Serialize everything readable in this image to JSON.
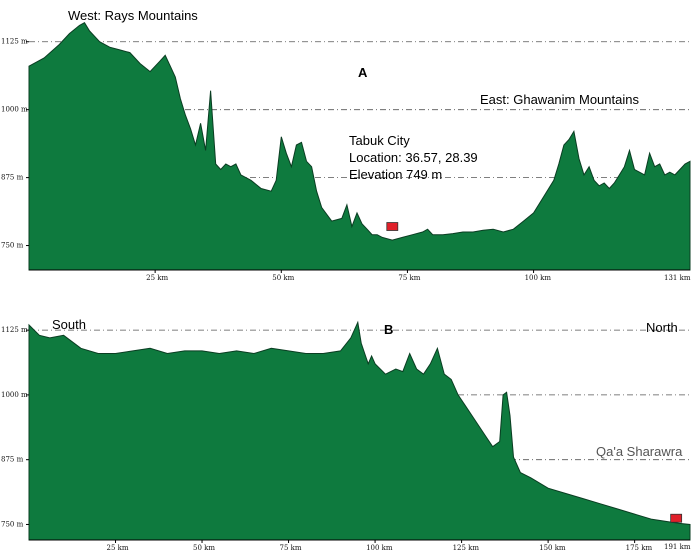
{
  "chart_data": [
    {
      "type": "area",
      "panel_label": "A",
      "annotations": {
        "west": "West: Rays Mountains",
        "east": "East: Ghawanim Mountains",
        "city": "Tabuk City",
        "location": "Location: 36.57, 28.39",
        "elevation": "Elevation 749 m"
      },
      "y_ticks": [
        750,
        875,
        1000,
        1125
      ],
      "y_tick_labels": [
        "750 m",
        "875 m",
        "1000 m",
        "1125 m"
      ],
      "x_ticks": [
        25,
        50,
        75,
        100
      ],
      "x_tick_labels": [
        "25 km",
        "50 km",
        "75 km",
        "100 km"
      ],
      "x_end_label": "131 km",
      "xlim": [
        0,
        131
      ],
      "ylim": [
        705,
        1165
      ],
      "marker": {
        "x": 72,
        "y": 785,
        "color": "#e0202a"
      },
      "x": [
        0,
        3,
        6,
        8,
        10,
        11,
        12,
        13,
        14,
        16,
        18,
        20,
        22,
        24,
        26,
        27,
        28,
        29,
        30,
        31,
        32,
        33,
        34,
        35,
        36,
        37,
        38,
        39,
        40,
        41,
        42,
        44,
        46,
        48,
        49,
        50,
        51,
        52,
        53,
        54,
        55,
        56,
        57,
        58,
        60,
        62,
        63,
        64,
        65,
        66,
        67,
        68,
        69,
        70,
        72,
        74,
        76,
        78,
        79,
        80,
        82,
        84,
        86,
        88,
        90,
        92,
        94,
        96,
        98,
        100,
        102,
        104,
        105,
        106,
        107,
        108,
        109,
        110,
        111,
        112,
        113,
        114,
        115,
        116,
        117,
        118,
        119,
        120,
        121,
        122,
        123,
        124,
        125,
        126,
        127,
        128,
        129,
        130,
        131
      ],
      "y": [
        1080,
        1095,
        1120,
        1140,
        1155,
        1160,
        1145,
        1135,
        1125,
        1115,
        1110,
        1105,
        1085,
        1070,
        1090,
        1100,
        1080,
        1060,
        1020,
        990,
        965,
        935,
        975,
        925,
        1035,
        900,
        890,
        900,
        895,
        900,
        880,
        870,
        855,
        850,
        870,
        950,
        920,
        895,
        935,
        940,
        905,
        895,
        850,
        820,
        795,
        800,
        825,
        785,
        810,
        790,
        780,
        770,
        770,
        765,
        760,
        765,
        770,
        775,
        780,
        770,
        770,
        772,
        775,
        775,
        778,
        780,
        775,
        780,
        795,
        810,
        840,
        870,
        900,
        935,
        945,
        960,
        910,
        880,
        895,
        870,
        860,
        865,
        855,
        865,
        880,
        895,
        925,
        890,
        885,
        880,
        920,
        895,
        900,
        880,
        885,
        880,
        890,
        900,
        905
      ]
    },
    {
      "type": "area",
      "panel_label": "B",
      "annotations": {
        "south": "South",
        "north": "North",
        "place": "Qa'a Sharawra"
      },
      "y_ticks": [
        750,
        875,
        1000,
        1125
      ],
      "y_tick_labels": [
        "750 m",
        "875 m",
        "1000 m",
        "1125 m"
      ],
      "x_ticks": [
        25,
        50,
        75,
        100,
        125,
        150,
        175
      ],
      "x_tick_labels": [
        "25 km",
        "50 km",
        "75 km",
        "100 km",
        "125 km",
        "150 km",
        "175 km"
      ],
      "x_end_label": "191 km",
      "xlim": [
        0,
        191
      ],
      "ylim": [
        720,
        1160
      ],
      "marker": {
        "x": 187,
        "y": 762,
        "color": "#e0202a"
      },
      "x": [
        0,
        3,
        6,
        10,
        15,
        20,
        25,
        30,
        35,
        40,
        45,
        50,
        55,
        60,
        65,
        70,
        75,
        80,
        85,
        90,
        93,
        95,
        96,
        97,
        98,
        99,
        100,
        103,
        106,
        108,
        110,
        112,
        114,
        116,
        118,
        120,
        122,
        124,
        126,
        128,
        130,
        132,
        134,
        136,
        137,
        138,
        139,
        140,
        142,
        145,
        150,
        155,
        160,
        165,
        170,
        175,
        180,
        185,
        188,
        191
      ],
      "y": [
        1135,
        1115,
        1110,
        1115,
        1090,
        1080,
        1080,
        1085,
        1090,
        1080,
        1085,
        1085,
        1080,
        1085,
        1080,
        1090,
        1085,
        1080,
        1080,
        1085,
        1110,
        1140,
        1100,
        1080,
        1060,
        1075,
        1060,
        1040,
        1050,
        1045,
        1080,
        1050,
        1040,
        1060,
        1090,
        1040,
        1030,
        1000,
        980,
        960,
        940,
        920,
        900,
        910,
        1000,
        1005,
        960,
        880,
        850,
        840,
        820,
        810,
        800,
        790,
        780,
        770,
        760,
        755,
        752,
        750
      ]
    }
  ]
}
